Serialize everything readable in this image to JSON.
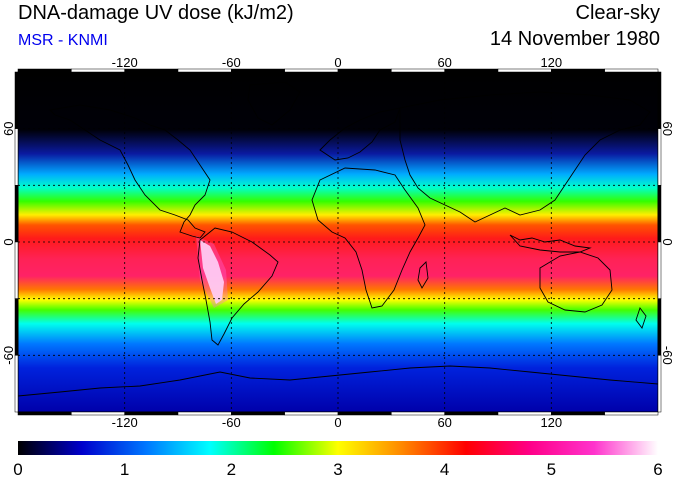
{
  "header": {
    "title": "DNA-damage UV dose (kJ/m2)",
    "subtitle": "MSR - KNMI",
    "condition": "Clear-sky",
    "date": "14 November 1980"
  },
  "map": {
    "projection": "equirectangular",
    "lon_ticks": [
      "-120",
      "-60",
      "0",
      "60",
      "120"
    ],
    "lat_ticks": [
      "60",
      "0",
      "-60"
    ],
    "lon_range": [
      -180,
      180
    ],
    "lat_range": [
      -90,
      90
    ]
  },
  "colorbar": {
    "ticks": [
      "0",
      "1",
      "2",
      "3",
      "4",
      "5",
      "6"
    ],
    "stops": [
      "#000000",
      "#0000cc",
      "#0077ff",
      "#00ffff",
      "#00ff00",
      "#ffff00",
      "#ff8800",
      "#ff0000",
      "#ff0088",
      "#ff33cc",
      "#ffffff"
    ]
  }
}
